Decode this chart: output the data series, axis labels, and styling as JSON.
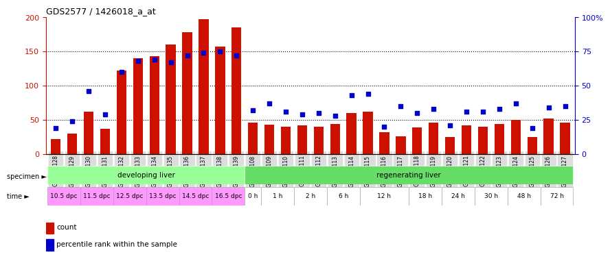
{
  "title": "GDS2577 / 1426018_a_at",
  "samples": [
    "GSM161128",
    "GSM161129",
    "GSM161130",
    "GSM161131",
    "GSM161132",
    "GSM161133",
    "GSM161134",
    "GSM161135",
    "GSM161136",
    "GSM161137",
    "GSM161138",
    "GSM161139",
    "GSM161108",
    "GSM161109",
    "GSM161110",
    "GSM161111",
    "GSM161112",
    "GSM161113",
    "GSM161114",
    "GSM161115",
    "GSM161116",
    "GSM161117",
    "GSM161118",
    "GSM161119",
    "GSM161120",
    "GSM161121",
    "GSM161122",
    "GSM161123",
    "GSM161124",
    "GSM161125",
    "GSM161126",
    "GSM161127"
  ],
  "counts": [
    22,
    30,
    62,
    37,
    122,
    140,
    143,
    160,
    178,
    197,
    157,
    185,
    46,
    43,
    40,
    42,
    40,
    44,
    60,
    62,
    32,
    26,
    39,
    46,
    25,
    42,
    40,
    44,
    50,
    25,
    52,
    46
  ],
  "percentiles": [
    19,
    24,
    46,
    29,
    60,
    68,
    69,
    67,
    72,
    74,
    75,
    72,
    32,
    37,
    31,
    29,
    30,
    28,
    43,
    44,
    20,
    35,
    30,
    33,
    21,
    31,
    31,
    33,
    37,
    19,
    34,
    35
  ],
  "ylim_left": [
    0,
    200
  ],
  "ylim_right": [
    0,
    100
  ],
  "yticks_left": [
    0,
    50,
    100,
    150,
    200
  ],
  "yticks_right": [
    0,
    25,
    50,
    75,
    100
  ],
  "yticklabels_right": [
    "0",
    "25",
    "50",
    "75",
    "100%"
  ],
  "bar_color": "#CC1100",
  "dot_color": "#0000CC",
  "grid_color": "#000000",
  "specimen_groups": [
    {
      "label": "developing liver",
      "start": 0,
      "end": 12,
      "color": "#99FF99"
    },
    {
      "label": "regenerating liver",
      "start": 12,
      "end": 32,
      "color": "#66DD66"
    }
  ],
  "time_labels": [
    {
      "label": "10.5 dpc",
      "start": 0,
      "end": 2
    },
    {
      "label": "11.5 dpc",
      "start": 2,
      "end": 4
    },
    {
      "label": "12.5 dpc",
      "start": 4,
      "end": 6
    },
    {
      "label": "13.5 dpc",
      "start": 6,
      "end": 8
    },
    {
      "label": "14.5 dpc",
      "start": 8,
      "end": 10
    },
    {
      "label": "16.5 dpc",
      "start": 10,
      "end": 12
    },
    {
      "label": "0 h",
      "start": 12,
      "end": 13
    },
    {
      "label": "1 h",
      "start": 13,
      "end": 15
    },
    {
      "label": "2 h",
      "start": 15,
      "end": 17
    },
    {
      "label": "6 h",
      "start": 17,
      "end": 19
    },
    {
      "label": "12 h",
      "start": 19,
      "end": 22
    },
    {
      "label": "18 h",
      "start": 22,
      "end": 24
    },
    {
      "label": "24 h",
      "start": 24,
      "end": 26
    },
    {
      "label": "30 h",
      "start": 26,
      "end": 28
    },
    {
      "label": "48 h",
      "start": 28,
      "end": 30
    },
    {
      "label": "72 h",
      "start": 30,
      "end": 32
    }
  ],
  "time_colors": {
    "dpc": "#FF99FF",
    "h": "#FFFFFF"
  },
  "bg_color": "#FFFFFF",
  "tick_bg": "#DDDDDD"
}
